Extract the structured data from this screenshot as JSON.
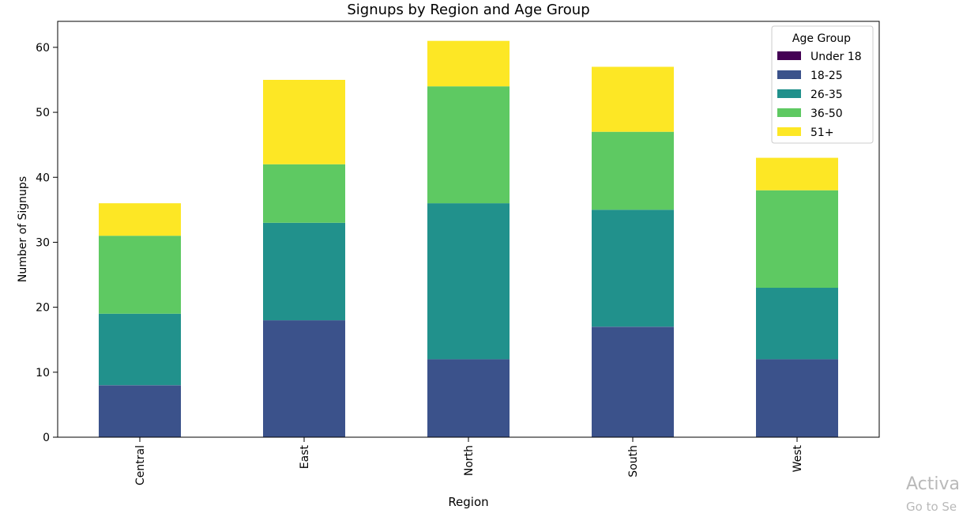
{
  "chart_data": {
    "type": "bar",
    "stacked": true,
    "title": "Signups by Region and Age Group",
    "xlabel": "Region",
    "ylabel": "Number of Signups",
    "categories": [
      "Central",
      "East",
      "North",
      "South",
      "West"
    ],
    "ylim": [
      0,
      64
    ],
    "yticks": [
      0,
      10,
      20,
      30,
      40,
      50,
      60
    ],
    "grid": false,
    "legend": {
      "title": "Age Group",
      "placement": "top-right"
    },
    "series": [
      {
        "name": "Under 18",
        "color": "#440154",
        "values": [
          0,
          0,
          0,
          0,
          0
        ]
      },
      {
        "name": "18-25",
        "color": "#3b528b",
        "values": [
          8,
          18,
          12,
          17,
          12
        ]
      },
      {
        "name": "26-35",
        "color": "#21918c",
        "values": [
          11,
          15,
          24,
          18,
          11
        ]
      },
      {
        "name": "36-50",
        "color": "#5ec962",
        "values": [
          12,
          9,
          18,
          12,
          15
        ]
      },
      {
        "name": "51+",
        "color": "#fde725",
        "values": [
          5,
          13,
          7,
          10,
          5
        ]
      }
    ]
  },
  "watermark": {
    "line1": "Activa",
    "line2": "Go to Se"
  }
}
